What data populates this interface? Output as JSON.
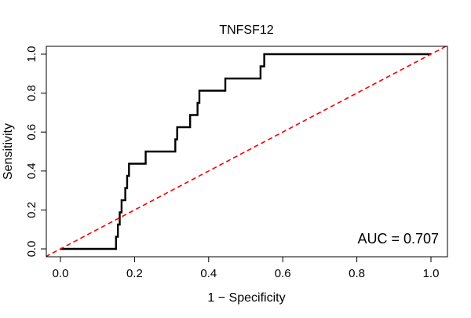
{
  "chart_data": {
    "type": "line",
    "title": "TNFSF12",
    "xlabel": "1 − Specificity",
    "ylabel": "Sensitivity",
    "xlim": [
      0,
      1
    ],
    "ylim": [
      0,
      1
    ],
    "x_ticks": [
      "0.0",
      "0.2",
      "0.4",
      "0.6",
      "0.8",
      "1.0"
    ],
    "y_ticks": [
      "0.0",
      "0.2",
      "0.4",
      "0.6",
      "0.8",
      "1.0"
    ],
    "grid": false,
    "annotation": "AUC = 0.707",
    "series": [
      {
        "style": "solid",
        "color": "#000000",
        "x": [
          0.0,
          0.15,
          0.15,
          0.155,
          0.155,
          0.16,
          0.16,
          0.165,
          0.165,
          0.175,
          0.175,
          0.18,
          0.18,
          0.185,
          0.185,
          0.19,
          0.19,
          0.23,
          0.23,
          0.31,
          0.31,
          0.315,
          0.315,
          0.35,
          0.35,
          0.37,
          0.37,
          0.375,
          0.375,
          0.38,
          0.38,
          0.445,
          0.445,
          0.54,
          0.54,
          0.55,
          0.55,
          1.0
        ],
        "y": [
          0.0,
          0.0,
          0.0625,
          0.0625,
          0.125,
          0.125,
          0.1875,
          0.1875,
          0.25,
          0.25,
          0.3125,
          0.3125,
          0.375,
          0.375,
          0.4375,
          0.4375,
          0.4375,
          0.4375,
          0.5,
          0.5,
          0.5625,
          0.5625,
          0.625,
          0.625,
          0.6875,
          0.6875,
          0.75,
          0.75,
          0.8125,
          0.8125,
          0.8125,
          0.8125,
          0.875,
          0.875,
          0.9375,
          0.9375,
          1.0,
          1.0
        ]
      },
      {
        "style": "dashed",
        "color": "#ff0000",
        "x": [
          -0.04,
          1.04
        ],
        "y": [
          -0.04,
          1.04
        ]
      }
    ]
  }
}
